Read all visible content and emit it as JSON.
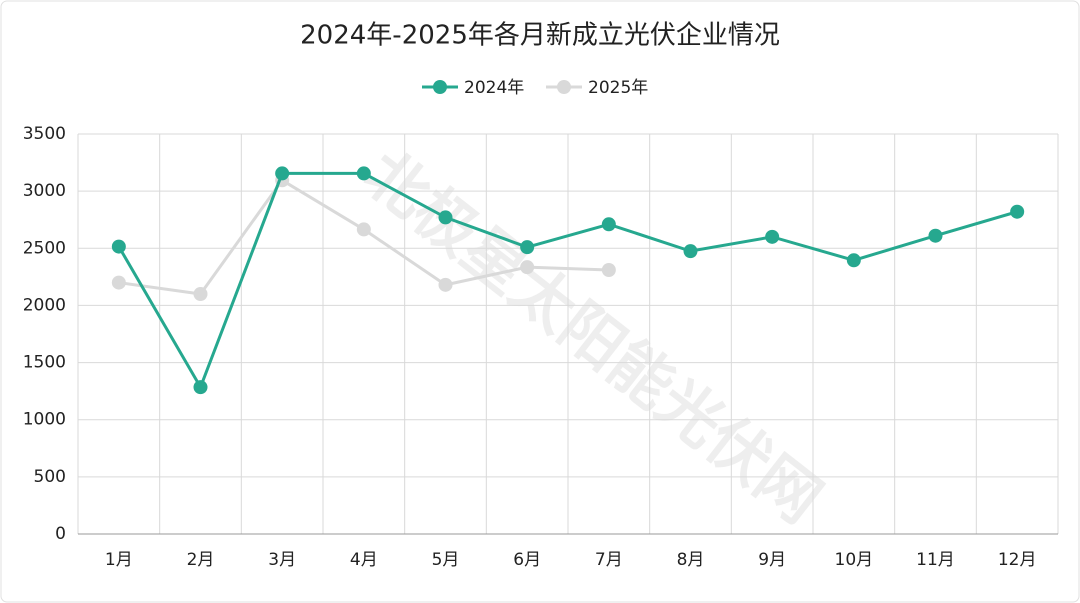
{
  "chart_data": {
    "type": "line",
    "title": "2024年-2025年各月新成立光伏企业情况",
    "watermark": "北极星太阳能光伏网",
    "categories": [
      "1月",
      "2月",
      "3月",
      "4月",
      "5月",
      "6月",
      "7月",
      "8月",
      "9月",
      "10月",
      "11月",
      "12月"
    ],
    "series": [
      {
        "name": "2024年",
        "color": "#26a88f",
        "values": [
          2515,
          1285,
          3155,
          3155,
          2770,
          2510,
          2710,
          2475,
          2600,
          2395,
          2610,
          2820
        ]
      },
      {
        "name": "2025年",
        "color": "#d9d9d9",
        "values": [
          2200,
          2100,
          3095,
          2665,
          2180,
          2335,
          2310,
          null,
          null,
          null,
          null,
          null
        ]
      }
    ],
    "ylim": [
      0,
      3500
    ],
    "yticks": [
      0,
      500,
      1000,
      1500,
      2000,
      2500,
      3000,
      3500
    ],
    "grid": true,
    "legend": "top"
  }
}
